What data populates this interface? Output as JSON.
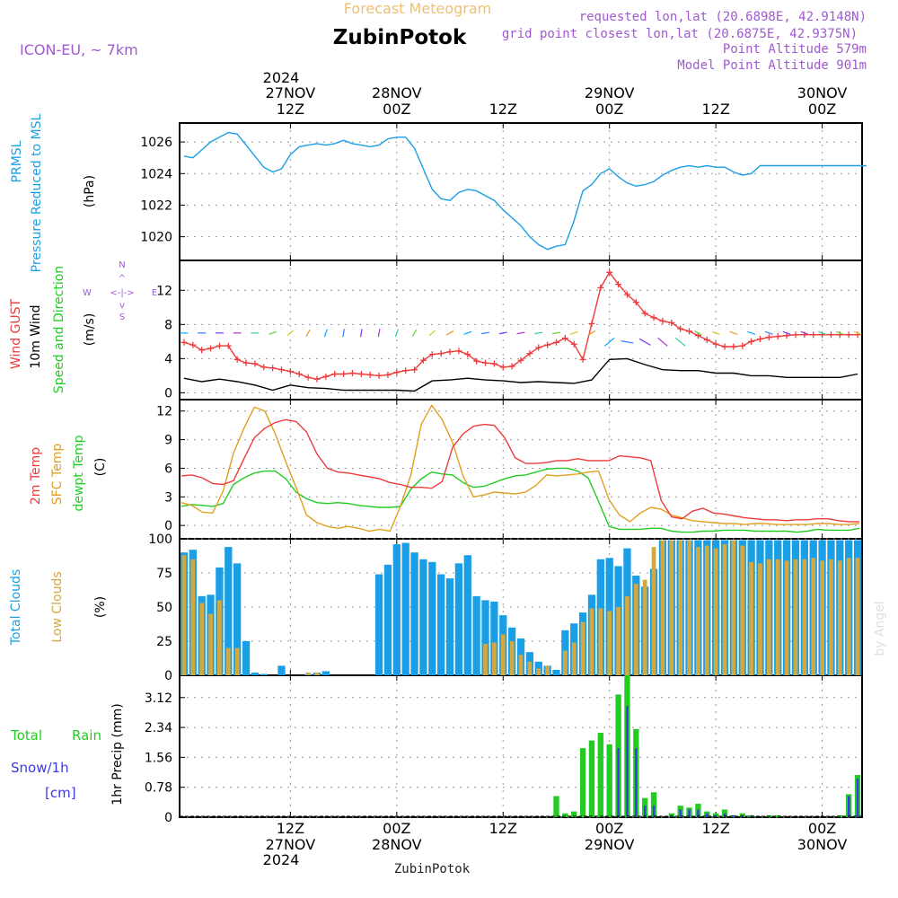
{
  "header": {
    "product": "Forecast Meteogram",
    "station": "ZubinPotok",
    "model": "ICON-EU, ~ 7km",
    "requested": "requested lon,lat (20.6898E, 42.9148N)",
    "closest": "grid point closest lon,lat (20.6875E, 42.9375N)",
    "point_alt": "Point Altitude 579m",
    "model_alt": "Model Point Altitude 901m",
    "credit": "by Angel",
    "footer_station": "ZubinPotok"
  },
  "colors": {
    "pressure": "#1a9fe6",
    "gust": "#ee3b3b",
    "wind": "#000000",
    "t2m": "#ee3b3b",
    "sfc": "#e0a020",
    "dewpt": "#22cc22",
    "total_clouds": "#1a9fe6",
    "low_clouds": "#d4a840",
    "rain": "#22cc22",
    "snow": "#3a3ae6",
    "label_purple": "#a05ad0"
  },
  "time_axis": {
    "top_year": "2024",
    "bottom_year": "2024",
    "ticks": [
      {
        "hour": 12,
        "time": "12Z",
        "date": "27NOV"
      },
      {
        "hour": 24,
        "time": "00Z",
        "date": "28NOV"
      },
      {
        "hour": 36,
        "time": "12Z",
        "date": ""
      },
      {
        "hour": 48,
        "time": "00Z",
        "date": "29NOV"
      },
      {
        "hour": 60,
        "time": "12Z",
        "date": ""
      },
      {
        "hour": 72,
        "time": "00Z",
        "date": "30NOV"
      }
    ]
  },
  "panels": {
    "pressure": {
      "ylabel1": "PRMSL",
      "ylabel2": "Pressure Reduced to MSL",
      "unit": "(hPa)"
    },
    "wind": {
      "ylabel1": "Wind GUST",
      "ylabel2": "10m Wind",
      "ylabel3": "Speed and Direction",
      "unit": "(m/s)",
      "compass_n": "N",
      "compass_s": "S",
      "compass_w": "W",
      "compass_e": "E",
      "compass_arrows": "<-|->"
    },
    "temp": {
      "ylabel1": "2m Temp",
      "ylabel2": "SFC Temp",
      "ylabel3": "dewpt Temp",
      "unit": "(C)"
    },
    "clouds": {
      "ylabel1": "Total Clouds",
      "ylabel2": "Low Clouds",
      "unit": "(%)"
    },
    "precip": {
      "ylabel1": "Total",
      "ylabel1b": "Rain",
      "ylabel2": "Snow/1h",
      "ylabel3": "[cm]",
      "unit": "1hr Precip (mm)"
    }
  },
  "chart_data": [
    {
      "type": "line",
      "name": "PRMSL",
      "unit": "hPa",
      "ylim": [
        1018.5,
        1027.2
      ],
      "yticks": [
        1020,
        1022,
        1024,
        1026
      ],
      "x_hours": [
        0,
        1,
        2,
        3,
        4,
        5,
        6,
        7,
        8,
        9,
        10,
        11,
        12,
        13,
        14,
        15,
        16,
        17,
        18,
        19,
        20,
        21,
        22,
        23,
        24,
        25,
        26,
        27,
        28,
        29,
        30,
        31,
        32,
        33,
        34,
        35,
        36,
        37,
        38,
        39,
        40,
        41,
        42,
        43,
        44,
        45,
        46,
        47,
        48,
        49,
        50,
        51,
        52,
        53,
        54,
        55,
        56,
        57,
        58,
        59,
        60,
        61,
        62,
        63,
        64,
        65,
        66,
        67,
        68,
        69,
        70,
        71,
        72,
        73,
        74,
        75,
        76,
        77
      ],
      "values": [
        1025.1,
        1025.0,
        1025.5,
        1026.0,
        1026.3,
        1026.6,
        1026.5,
        1025.8,
        1025.1,
        1024.4,
        1024.1,
        1024.3,
        1025.2,
        1025.7,
        1025.8,
        1025.9,
        1025.8,
        1025.9,
        1026.1,
        1025.9,
        1025.8,
        1025.7,
        1025.8,
        1026.2,
        1026.3,
        1026.3,
        1025.6,
        1024.3,
        1023.0,
        1022.4,
        1022.3,
        1022.8,
        1023.0,
        1022.9,
        1022.6,
        1022.3,
        1021.7,
        1021.2,
        1020.7,
        1020.0,
        1019.5,
        1019.2,
        1019.4,
        1019.5,
        1021.0,
        1022.9,
        1023.3,
        1024.0,
        1024.3,
        1023.8,
        1023.4,
        1023.2,
        1023.3,
        1023.5,
        1023.9,
        1024.2,
        1024.4,
        1024.5,
        1024.4,
        1024.5,
        1024.4,
        1024.4,
        1024.1,
        1023.9,
        1024.0,
        1024.5,
        1024.5,
        1024.5,
        1024.5,
        1024.5,
        1024.5,
        1024.5,
        1024.5,
        1024.5,
        1024.5,
        1024.5,
        1024.5,
        1024.5
      ]
    },
    {
      "type": "line",
      "name": "Wind",
      "unit": "m/s",
      "ylim": [
        -0.8,
        15.5
      ],
      "yticks": [
        0,
        4,
        8,
        12
      ],
      "series": [
        {
          "name": "Wind GUST",
          "x_hours": [
            0,
            1,
            2,
            3,
            4,
            5,
            6,
            7,
            8,
            9,
            10,
            11,
            12,
            13,
            14,
            15,
            16,
            17,
            18,
            19,
            20,
            21,
            22,
            23,
            24,
            25,
            26,
            27,
            28,
            29,
            30,
            31,
            32,
            33,
            34,
            35,
            36,
            37,
            38,
            39,
            40,
            41,
            42,
            43,
            44,
            45,
            46,
            47,
            48,
            49,
            50,
            51,
            52,
            53,
            54,
            55,
            56,
            57,
            58,
            59,
            60,
            61,
            62,
            63,
            64,
            65,
            66,
            67,
            68,
            69,
            70,
            71,
            72,
            73,
            74,
            75,
            76
          ],
          "values": [
            5.9,
            5.6,
            5.0,
            5.2,
            5.5,
            5.5,
            3.9,
            3.5,
            3.4,
            3.0,
            2.9,
            2.7,
            2.5,
            2.2,
            1.8,
            1.6,
            1.9,
            2.2,
            2.2,
            2.3,
            2.2,
            2.1,
            2.0,
            2.1,
            2.4,
            2.6,
            2.7,
            3.8,
            4.5,
            4.6,
            4.8,
            4.9,
            4.5,
            3.7,
            3.5,
            3.4,
            3.0,
            3.1,
            3.8,
            4.6,
            5.3,
            5.6,
            5.9,
            6.4,
            5.7,
            3.9,
            8.1,
            12.3,
            14.1,
            12.7,
            11.5,
            10.6,
            9.3,
            8.8,
            8.4,
            8.2,
            7.5,
            7.2,
            6.7,
            6.2,
            5.7,
            5.4,
            5.4,
            5.5,
            6.0,
            6.3,
            6.5,
            6.6,
            6.7,
            6.8,
            6.8,
            6.8,
            6.8,
            6.8,
            6.8,
            6.8,
            6.8
          ]
        },
        {
          "name": "10m Wind",
          "x_hours": [
            0,
            2,
            4,
            6,
            8,
            10,
            12,
            14,
            16,
            18,
            20,
            22,
            24,
            26,
            28,
            30,
            32,
            34,
            36,
            38,
            40,
            42,
            44,
            46,
            48,
            50,
            52,
            54,
            56,
            58,
            60,
            62,
            64,
            66,
            68,
            70,
            72,
            74,
            76
          ],
          "values": [
            1.7,
            1.3,
            1.6,
            1.3,
            0.9,
            0.3,
            0.9,
            0.6,
            0.5,
            0.3,
            0.3,
            0.3,
            0.3,
            0.2,
            1.4,
            1.5,
            1.7,
            1.5,
            1.4,
            1.2,
            1.3,
            1.2,
            1.1,
            1.5,
            3.9,
            4.0,
            3.3,
            2.7,
            2.6,
            2.6,
            2.3,
            2.3,
            2.0,
            2.0,
            1.8,
            1.8,
            1.8,
            1.8,
            2.2
          ]
        }
      ],
      "arrows_y": 7.0,
      "arrows_hours": [
        0,
        2,
        4,
        6,
        8,
        10,
        12,
        14,
        16,
        18,
        20,
        22,
        24,
        26,
        28,
        30,
        32,
        34,
        36,
        38,
        40,
        42,
        44,
        46,
        48,
        50,
        52,
        54,
        56,
        58,
        60,
        62,
        64,
        66,
        68,
        70,
        72,
        74,
        76
      ],
      "arrows_dir_deg": [
        270,
        270,
        270,
        270,
        270,
        250,
        230,
        210,
        200,
        190,
        190,
        190,
        200,
        210,
        230,
        240,
        250,
        260,
        260,
        260,
        260,
        260,
        250,
        240,
        230,
        280,
        300,
        310,
        310,
        300,
        290,
        290,
        290,
        290,
        290,
        290,
        290,
        290,
        290
      ]
    },
    {
      "type": "line",
      "name": "Temperature",
      "unit": "C",
      "ylim": [
        -1.4,
        13.2
      ],
      "yticks": [
        0,
        3,
        6,
        9,
        12
      ],
      "series": [
        {
          "name": "2m Temp",
          "values": [
            5.2,
            5.3,
            5.0,
            4.4,
            4.3,
            4.7,
            7.0,
            9.2,
            10.2,
            10.8,
            11.1,
            10.9,
            9.8,
            7.5,
            6.0,
            5.6,
            5.5,
            5.3,
            5.1,
            4.9,
            4.5,
            4.3,
            4.0,
            4.0,
            3.9,
            4.6,
            8.2,
            9.6,
            10.4,
            10.6,
            10.5,
            9.2,
            7.1,
            6.5,
            6.5,
            6.6,
            6.8,
            6.8,
            7.0,
            6.8,
            6.8,
            6.8,
            7.3,
            7.2,
            7.1,
            6.8,
            2.6,
            0.9,
            0.7,
            1.5,
            1.8,
            1.3,
            1.2,
            1.0,
            0.8,
            0.7,
            0.6,
            0.6,
            0.5,
            0.6,
            0.6,
            0.7,
            0.7,
            0.5,
            0.4,
            0.4
          ]
        },
        {
          "name": "SFC Temp",
          "values": [
            2.4,
            2.1,
            1.4,
            1.3,
            3.6,
            7.6,
            10.2,
            12.4,
            12.0,
            9.6,
            6.7,
            4.0,
            1.1,
            0.3,
            -0.1,
            -0.3,
            -0.1,
            -0.3,
            -0.6,
            -0.4,
            -0.6,
            2.0,
            5.3,
            10.6,
            12.6,
            11.1,
            8.7,
            5.2,
            3.0,
            3.2,
            3.5,
            3.4,
            3.3,
            3.5,
            4.2,
            5.3,
            5.2,
            5.3,
            5.4,
            5.6,
            5.7,
            2.7,
            1.1,
            0.4,
            1.3,
            1.9,
            1.7,
            1.1,
            0.8,
            0.5,
            0.4,
            0.3,
            0.2,
            0.2,
            0.1,
            0.2,
            0.2,
            0.1,
            0.1,
            0.1,
            0.1,
            0.2,
            0.2,
            0.1,
            0.1,
            0.2
          ]
        },
        {
          "name": "dewpt Temp",
          "values": [
            2.0,
            2.2,
            2.1,
            2.0,
            2.3,
            4.3,
            5.0,
            5.5,
            5.7,
            5.7,
            4.9,
            3.5,
            2.8,
            2.4,
            2.3,
            2.4,
            2.3,
            2.1,
            2.0,
            1.9,
            1.9,
            2.0,
            3.8,
            4.9,
            5.6,
            5.4,
            5.3,
            4.5,
            4.0,
            4.1,
            4.5,
            4.9,
            5.2,
            5.3,
            5.6,
            5.9,
            6.0,
            6.0,
            5.7,
            5.0,
            2.5,
            -0.1,
            -0.4,
            -0.4,
            -0.4,
            -0.3,
            -0.3,
            -0.6,
            -0.7,
            -0.7,
            -0.6,
            -0.6,
            -0.5,
            -0.5,
            -0.5,
            -0.6,
            -0.6,
            -0.6,
            -0.6,
            -0.7,
            -0.6,
            -0.4,
            -0.5,
            -0.5,
            -0.5,
            -0.3
          ]
        }
      ]
    },
    {
      "type": "bar",
      "name": "Clouds",
      "unit": "%",
      "ylim": [
        0,
        100
      ],
      "yticks": [
        0,
        25,
        50,
        75,
        100
      ],
      "series": [
        {
          "name": "Total Clouds",
          "values": [
            90,
            92,
            58,
            59,
            79,
            94,
            82,
            25,
            2,
            1,
            0,
            7,
            0,
            0,
            1,
            2,
            3,
            0,
            0,
            0,
            0,
            0,
            74,
            81,
            96,
            97,
            90,
            85,
            83,
            74,
            71,
            82,
            88,
            58,
            55,
            54,
            44,
            35,
            27,
            17,
            10,
            7,
            4,
            33,
            38,
            46,
            59,
            85,
            86,
            80,
            93,
            73,
            65,
            78,
            99,
            99,
            99,
            99,
            99,
            99,
            99,
            99,
            99,
            99,
            99,
            99,
            99,
            99,
            99,
            99,
            99,
            99,
            99,
            99,
            99,
            99,
            99
          ]
        },
        {
          "name": "Low Clouds",
          "values": [
            88,
            85,
            53,
            45,
            55,
            20,
            20,
            0,
            0,
            0,
            0,
            0,
            0,
            0,
            2,
            2,
            0,
            0,
            0,
            0,
            0,
            0,
            0,
            0,
            0,
            0,
            0,
            0,
            0,
            0,
            0,
            0,
            0,
            0,
            23,
            24,
            30,
            25,
            15,
            10,
            5,
            7,
            0,
            18,
            24,
            39,
            49,
            49,
            47,
            50,
            58,
            67,
            70,
            94,
            99,
            99,
            99,
            99,
            94,
            95,
            93,
            96,
            99,
            95,
            83,
            82,
            85,
            85,
            84,
            85,
            85,
            86,
            84,
            85,
            84,
            86,
            86
          ]
        }
      ]
    },
    {
      "type": "bar",
      "name": "1hr Precip",
      "unit": "mm",
      "ylim": [
        0,
        3.7
      ],
      "yticks": [
        0,
        0.78,
        1.56,
        2.34,
        3.12
      ],
      "x_hours": [
        42,
        43,
        44,
        45,
        46,
        47,
        48,
        49,
        50,
        51,
        52,
        53,
        54,
        55,
        56,
        57,
        58,
        59,
        60,
        61,
        62,
        63,
        64,
        65,
        66,
        67,
        68,
        69,
        70,
        71,
        72,
        73,
        74,
        75,
        76
      ],
      "series": [
        {
          "name": "Total Rain",
          "values": [
            0.55,
            0.1,
            0.15,
            1.8,
            2.0,
            2.2,
            1.9,
            3.2,
            3.7,
            2.3,
            0.5,
            0.65,
            0.0,
            0.1,
            0.3,
            0.25,
            0.35,
            0.15,
            0.1,
            0.2,
            0.05,
            0.1,
            0.05,
            0.0,
            0.05,
            0.05,
            0.0,
            0.0,
            0.0,
            0.0,
            0.0,
            0.0,
            0.05,
            0.6,
            1.1
          ]
        },
        {
          "name": "Snow/1h",
          "values": [
            0.0,
            0.0,
            0.0,
            0.0,
            0.0,
            0.0,
            0.0,
            1.8,
            2.9,
            1.8,
            0.3,
            0.3,
            0.0,
            0.05,
            0.2,
            0.2,
            0.2,
            0.1,
            0.05,
            0.1,
            0.05,
            0.05,
            0.05,
            0.0,
            0.0,
            0.0,
            0.0,
            0.0,
            0.0,
            0.0,
            0.0,
            0.0,
            0.0,
            0.55,
            1.0
          ]
        }
      ]
    }
  ]
}
